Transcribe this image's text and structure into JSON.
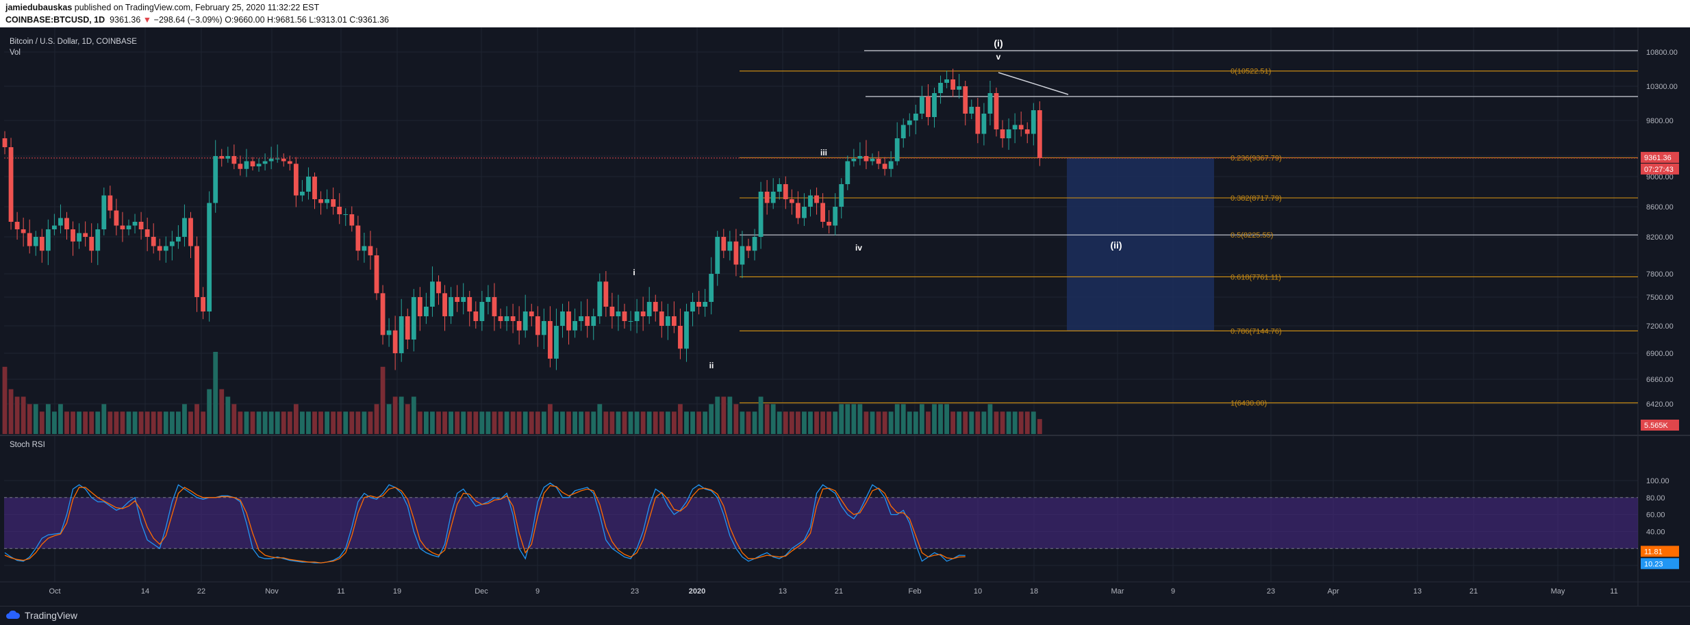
{
  "header": {
    "author": "jamiedubauskas",
    "published_text": "published on TradingView.com, February 25, 2020 11:32:22 EST",
    "symbol": "COINBASE:BTCUSD, 1D",
    "last": "9361.36",
    "change_arrow": "▼",
    "change": "−298.64 (−3.09%)",
    "ohlc": "O:9660.00 H:9681.56 L:9313.01 C:9361.36"
  },
  "chart_data": {
    "type": "candlestick",
    "title": "Bitcoin / U.S. Dollar, 1D, COINBASE",
    "volume_label": "Vol",
    "oscillator_label": "Stoch RSI",
    "price_axis_ticks": [
      "10800.00",
      "10300.00",
      "9800.00",
      "9400.00",
      "9000.00",
      "8600.00",
      "8200.00",
      "7800.00",
      "7500.00",
      "7200.00",
      "6900.00",
      "6660.00",
      "6420.00"
    ],
    "rsi_axis_ticks": [
      "100.00",
      "80.00",
      "60.00",
      "40.00",
      "20.00",
      "0.00"
    ],
    "time_axis_ticks": [
      "Oct",
      "14",
      "22",
      "Nov",
      "11",
      "19",
      "Dec",
      "9",
      "23",
      "2020",
      "13",
      "21",
      "Feb",
      "10",
      "18",
      "Mar",
      "9",
      "23",
      "Apr",
      "13",
      "21",
      "May",
      "11"
    ],
    "last_price_label": "9361.36",
    "countdown_label": "07:27:43",
    "volume_value_label": "5.565K",
    "stoch_k_label": "11.81",
    "stoch_d_label": "10.23",
    "fib_levels": [
      {
        "ratio": 0,
        "price": 10522.51,
        "label": "0(10522.51)"
      },
      {
        "ratio": 0.236,
        "price": 9367.79,
        "label": "0.236(9367.79)"
      },
      {
        "ratio": 0.382,
        "price": 8717.79,
        "label": "0.382(8717.79)"
      },
      {
        "ratio": 0.5,
        "price": 8225.55,
        "label": "0.5(8225.55)"
      },
      {
        "ratio": 0.618,
        "price": 7761.11,
        "label": "0.618(7761.11)"
      },
      {
        "ratio": 0.786,
        "price": 7144.76,
        "label": "0.786(7144.76)"
      },
      {
        "ratio": 1,
        "price": 6430.0,
        "label": "1(6430.00)"
      }
    ],
    "wave_labels": [
      "(i)",
      "v",
      "iii",
      "iv",
      "i",
      "ii",
      "(ii)"
    ],
    "horizontal_lines": [
      10820,
      10150,
      8225.55
    ],
    "target_box": {
      "price_top": 9367.79,
      "price_bottom": 7144.76
    },
    "stoch_band": {
      "upper": 80,
      "lower": 20
    },
    "closes": [
      9500,
      8400,
      8300,
      8250,
      8100,
      8200,
      8050,
      8300,
      8350,
      8450,
      8300,
      8150,
      8250,
      8200,
      8050,
      8300,
      8750,
      8550,
      8350,
      8300,
      8350,
      8400,
      8300,
      8200,
      8100,
      8050,
      8100,
      8150,
      8200,
      8450,
      8100,
      7500,
      7350,
      8650,
      9400,
      9350,
      9400,
      9250,
      9150,
      9300,
      9200,
      9250,
      9300,
      9350,
      9350,
      9300,
      9250,
      8750,
      8800,
      9000,
      8700,
      8650,
      8700,
      8600,
      8500,
      8500,
      8350,
      8050,
      8100,
      8000,
      7550,
      7100,
      7150,
      6900,
      7300,
      7050,
      7500,
      7300,
      7400,
      7700,
      7550,
      7300,
      7500,
      7450,
      7500,
      7350,
      7250,
      7450,
      7500,
      7300,
      7250,
      7300,
      7250,
      7150,
      7350,
      7300,
      7100,
      7250,
      6850,
      7200,
      7350,
      7150,
      7250,
      7300,
      7200,
      7300,
      7700,
      7400,
      7300,
      7350,
      7250,
      7250,
      7350,
      7300,
      7450,
      7350,
      7200,
      7300,
      7200,
      6950,
      7350,
      7450,
      7400,
      7450,
      7800,
      8200,
      8050,
      8150,
      7900,
      8100,
      8050,
      8200,
      8800,
      8650,
      8800,
      8900,
      8700,
      8650,
      8450,
      8600,
      8750,
      8650,
      8400,
      8350,
      8600,
      8900,
      9300,
      9350,
      9400,
      9300,
      9350,
      9250,
      9150,
      9300,
      9600,
      9750,
      9800,
      9900,
      10150,
      9850,
      10200,
      10350,
      10400,
      10250,
      10300,
      9900,
      10000,
      9650,
      9900,
      10200,
      9700,
      9600,
      9700,
      9750,
      9700,
      9650,
      9950,
      9361.36
    ],
    "volumes": [
      9,
      6,
      5,
      5,
      4,
      4,
      3,
      4,
      3,
      4,
      3,
      3,
      3,
      3,
      3,
      3,
      4,
      3,
      3,
      3,
      3,
      3,
      3,
      3,
      3,
      3,
      3,
      3,
      3,
      4,
      3,
      4,
      3,
      6,
      11,
      6,
      5,
      4,
      3,
      3,
      3,
      3,
      3,
      3,
      3,
      3,
      3,
      4,
      3,
      3,
      3,
      3,
      3,
      3,
      3,
      3,
      3,
      3,
      3,
      3,
      4,
      9,
      4,
      5,
      5,
      4,
      5,
      3,
      3,
      3,
      3,
      3,
      3,
      3,
      3,
      3,
      3,
      3,
      3,
      3,
      3,
      3,
      3,
      3,
      3,
      3,
      3,
      3,
      4,
      3,
      3,
      3,
      3,
      3,
      3,
      3,
      4,
      3,
      3,
      3,
      3,
      3,
      3,
      3,
      3,
      3,
      3,
      3,
      3,
      4,
      3,
      3,
      3,
      3,
      4,
      5,
      5,
      5,
      4,
      3,
      3,
      3,
      5,
      4,
      4,
      3,
      3,
      3,
      3,
      3,
      3,
      3,
      3,
      3,
      3,
      4,
      4,
      4,
      4,
      3,
      3,
      3,
      3,
      3,
      4,
      4,
      3,
      3,
      4,
      3,
      4,
      4,
      4,
      3,
      3,
      3,
      3,
      3,
      3,
      4,
      3,
      3,
      3,
      3,
      3,
      3,
      3,
      2
    ],
    "stoch_k": [
      15,
      10,
      6,
      5,
      10,
      20,
      32,
      36,
      37,
      38,
      60,
      90,
      95,
      90,
      80,
      75,
      75,
      70,
      65,
      68,
      75,
      80,
      50,
      30,
      25,
      20,
      45,
      75,
      95,
      90,
      85,
      80,
      78,
      80,
      80,
      82,
      82,
      80,
      75,
      50,
      20,
      10,
      8,
      8,
      10,
      8,
      6,
      5,
      4,
      4,
      3,
      3,
      4,
      6,
      10,
      20,
      45,
      75,
      85,
      80,
      78,
      85,
      95,
      92,
      85,
      70,
      40,
      20,
      15,
      12,
      10,
      25,
      60,
      85,
      90,
      80,
      70,
      72,
      75,
      80,
      78,
      85,
      60,
      20,
      8,
      35,
      75,
      92,
      97,
      92,
      80,
      80,
      88,
      90,
      92,
      85,
      60,
      30,
      20,
      15,
      10,
      8,
      20,
      40,
      70,
      90,
      85,
      70,
      60,
      65,
      75,
      90,
      95,
      90,
      88,
      80,
      60,
      35,
      20,
      10,
      5,
      8,
      12,
      15,
      10,
      8,
      12,
      20,
      25,
      30,
      45,
      85,
      95,
      90,
      85,
      70,
      60,
      55,
      65,
      80,
      95,
      90,
      80,
      60,
      60,
      65,
      50,
      25,
      5,
      10,
      15,
      12,
      5,
      8,
      12,
      11.81
    ],
    "stoch_d": [
      12,
      9,
      7,
      6,
      8,
      15,
      25,
      32,
      35,
      37,
      50,
      78,
      92,
      92,
      86,
      80,
      76,
      72,
      68,
      67,
      70,
      76,
      65,
      45,
      32,
      25,
      35,
      60,
      85,
      92,
      88,
      83,
      80,
      80,
      80,
      81,
      81,
      80,
      77,
      62,
      38,
      18,
      12,
      10,
      9,
      9,
      7,
      6,
      5,
      4,
      4,
      3,
      4,
      5,
      8,
      15,
      35,
      62,
      80,
      82,
      80,
      82,
      90,
      92,
      88,
      78,
      55,
      30,
      20,
      15,
      12,
      18,
      45,
      72,
      85,
      84,
      76,
      72,
      73,
      77,
      78,
      82,
      70,
      38,
      15,
      25,
      58,
      85,
      94,
      93,
      86,
      82,
      85,
      88,
      90,
      88,
      72,
      45,
      28,
      18,
      13,
      10,
      15,
      30,
      55,
      80,
      86,
      78,
      66,
      64,
      70,
      82,
      90,
      91,
      89,
      84,
      70,
      45,
      28,
      15,
      8,
      8,
      10,
      12,
      11,
      10,
      11,
      17,
      22,
      28,
      38,
      70,
      90,
      91,
      88,
      77,
      66,
      60,
      62,
      74,
      88,
      91,
      85,
      70,
      62,
      62,
      55,
      35,
      15,
      10,
      12,
      13,
      9,
      8,
      10,
      10.23
    ]
  }
}
